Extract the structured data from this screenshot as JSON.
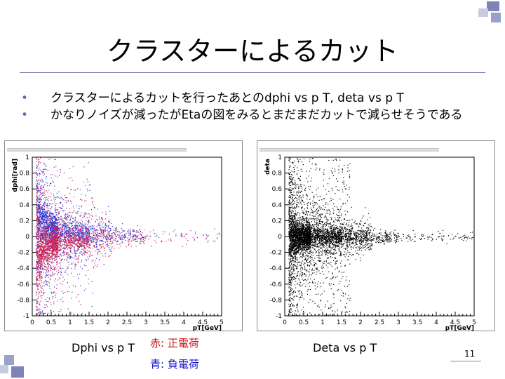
{
  "slide": {
    "title": "クラスターによるカット",
    "bullets": [
      "クラスターによるカットを行ったあとのdphi vs p T, deta vs p T",
      "かなりノイズが減ったがEtaの図をみるとまだまだカットで減らせそうである"
    ],
    "caption_left": "Dphi vs p T",
    "legend_red": "赤: 正電荷",
    "legend_blue": "青: 負電荷",
    "caption_right": "Deta vs p T",
    "page_number": "11"
  },
  "chart_data": [
    {
      "type": "scatter",
      "ylabel": "dphi[rad]",
      "xlabel": "pT[GeV]",
      "xlim": [
        0,
        5
      ],
      "ylim": [
        -1,
        1
      ],
      "x_ticks": [
        "0",
        "0.5",
        "1",
        "1.5",
        "2",
        "2.5",
        "3",
        "3.5",
        "4",
        "4.5",
        "5"
      ],
      "y_ticks": [
        "1",
        "0.8",
        "0.6",
        "0.4",
        "0.2",
        "0",
        "-0.2",
        "-0.4",
        "-0.6",
        "-0.8",
        "-1"
      ],
      "series": [
        {
          "color": "#2233dd",
          "band_center": [
            [
              0.2,
              0.28
            ],
            [
              0.5,
              0.18
            ],
            [
              1.0,
              0.08
            ],
            [
              2.0,
              0.03
            ],
            [
              3.0,
              0.015
            ]
          ]
        },
        {
          "color": "#cc2255",
          "band_center": [
            [
              0.2,
              -0.28
            ],
            [
              0.5,
              -0.18
            ],
            [
              1.0,
              -0.08
            ],
            [
              2.0,
              -0.03
            ],
            [
              3.0,
              -0.015
            ]
          ]
        }
      ]
    },
    {
      "type": "scatter",
      "ylabel": "deta",
      "xlabel": "pT[GeV]",
      "xlim": [
        0,
        5
      ],
      "ylim": [
        -1,
        1
      ],
      "x_ticks": [
        "0",
        "0.5",
        "1",
        "1.5",
        "2",
        "2.5",
        "3",
        "3.5",
        "4",
        "4.5",
        "5"
      ],
      "y_ticks": [
        "1",
        "0.8",
        "0.6",
        "0.4",
        "0.2",
        "0",
        "-0.2",
        "-0.4",
        "-0.6",
        "-0.8",
        "-1"
      ],
      "series": [
        {
          "color": "#000000",
          "band_center": [
            [
              0.2,
              0.0
            ],
            [
              1.0,
              0.0
            ],
            [
              3.0,
              0.0
            ]
          ]
        }
      ]
    }
  ]
}
